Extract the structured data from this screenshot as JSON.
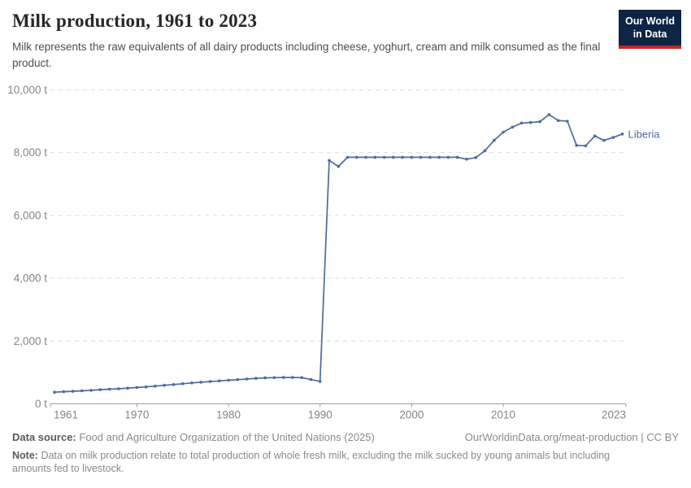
{
  "header": {
    "title": "Milk production, 1961 to 2023",
    "subtitle": "Milk represents the raw equivalents of all dairy products including cheese, yoghurt, cream and milk consumed as the final product."
  },
  "logo": {
    "line1": "Our World",
    "line2": "in Data",
    "bg_color": "#0d2444",
    "stripe_color": "#cd2420"
  },
  "chart_data": {
    "type": "line",
    "title": "Milk production, 1961 to 2023",
    "unit": "t",
    "grid": true,
    "legend": "end-of-line label",
    "x": {
      "range": [
        1961,
        2023
      ],
      "tick_labels": [
        "1961",
        "1970",
        "1980",
        "1990",
        "2000",
        "2010",
        "2023"
      ]
    },
    "y": {
      "range": [
        0,
        10000
      ],
      "ticks": [
        0,
        2000,
        4000,
        6000,
        8000,
        10000
      ],
      "tick_labels": [
        "0 t",
        "2,000 t",
        "4,000 t",
        "6,000 t",
        "8,000 t",
        "10,000 t"
      ]
    },
    "series": [
      {
        "name": "Liberia",
        "color": "#4C6A9C",
        "years": [
          1961,
          1962,
          1963,
          1964,
          1965,
          1966,
          1967,
          1968,
          1969,
          1970,
          1971,
          1972,
          1973,
          1974,
          1975,
          1976,
          1977,
          1978,
          1979,
          1980,
          1981,
          1982,
          1983,
          1984,
          1985,
          1986,
          1987,
          1988,
          1989,
          1990,
          1991,
          1992,
          1993,
          1994,
          1995,
          1996,
          1997,
          1998,
          1999,
          2000,
          2001,
          2002,
          2003,
          2004,
          2005,
          2006,
          2007,
          2008,
          2009,
          2010,
          2011,
          2012,
          2013,
          2014,
          2015,
          2016,
          2017,
          2018,
          2019,
          2020,
          2021,
          2022,
          2023
        ],
        "values": [
          370,
          385,
          400,
          415,
          430,
          450,
          465,
          480,
          500,
          520,
          540,
          565,
          590,
          615,
          640,
          665,
          690,
          710,
          730,
          750,
          770,
          790,
          810,
          825,
          835,
          840,
          840,
          835,
          775,
          715,
          7750,
          7560,
          7850,
          7850,
          7850,
          7850,
          7850,
          7850,
          7850,
          7850,
          7850,
          7850,
          7850,
          7850,
          7850,
          7790,
          7840,
          8060,
          8390,
          8650,
          8810,
          8940,
          8960,
          8985,
          9210,
          9020,
          9000,
          8230,
          8215,
          8530,
          8390,
          8480,
          8590
        ]
      }
    ]
  },
  "footer": {
    "datasource_label": "Data source:",
    "datasource_text": "Food and Agriculture Organization of the United Nations (2025)",
    "origin_text": "OurWorldinData.org/meat-production | CC BY",
    "note_label": "Note:",
    "note_text": "Data on milk production relate to total production of whole fresh milk, excluding the milk sucked by young animals but including amounts fed to livestock."
  }
}
